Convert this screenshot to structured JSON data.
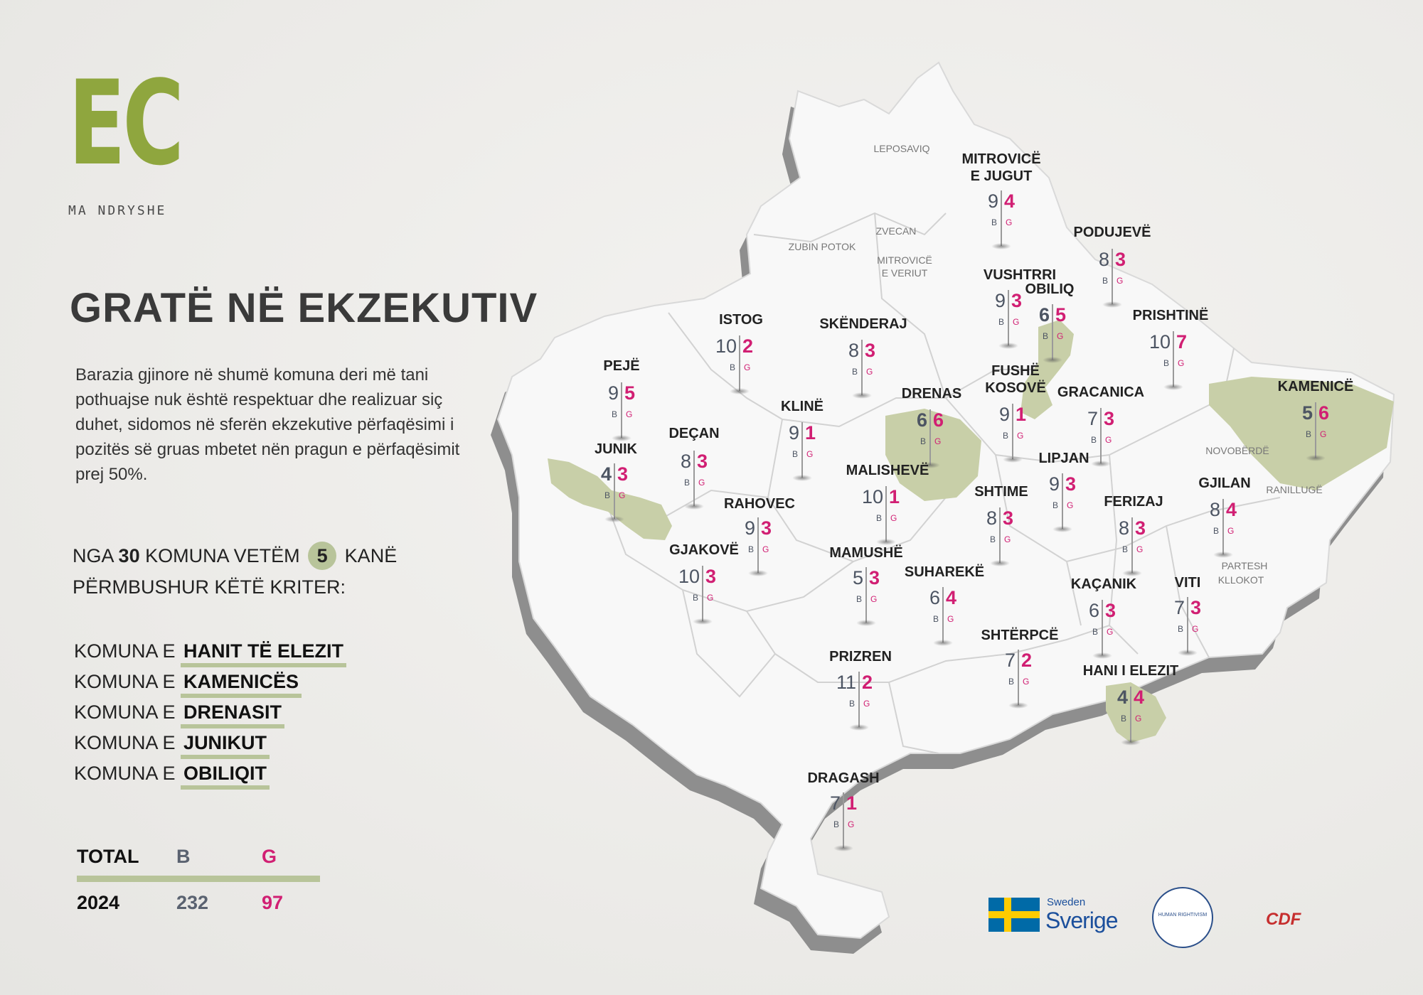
{
  "logo": {
    "mark": "EC",
    "tagline": "MA NDRYSHE"
  },
  "title": "GRATË NË EKZEKUTIV",
  "intro": "Barazia gjinore në shumë komuna deri më tani pothuajse nuk është  respektuar dhe realizuar siç duhet, sidomos në sferën ekzekutive përfaqësimi i pozitës së gruas mbetet nën pragun e përfaqësimit prej 50%.",
  "summary": {
    "prefix": "NGA",
    "total": "30",
    "middle": "KOMUNA VETËM",
    "count": "5",
    "suffix": "KANË",
    "line2": "PËRMBUSHUR KËTË KRITER:"
  },
  "compliant_list": {
    "prefix": "KOMUNA E",
    "items": [
      "HANIT TË ELEZIT",
      "KAMENICËS",
      "DRENASIT",
      "JUNIKUT",
      "OBILIQIT"
    ]
  },
  "totals": {
    "header": {
      "label": "TOTAL",
      "b": "B",
      "g": "G"
    },
    "row": {
      "year": "2024",
      "b": "232",
      "g": "97"
    }
  },
  "colors": {
    "accent_green": "#8fa63e",
    "highlight": "#c8cfa8",
    "boys": "#4d5563",
    "girls": "#d11f73",
    "map_fill": "#f7f7f7",
    "map_shadow": "#8e8e8e"
  },
  "map": {
    "labels": {
      "b": "B",
      "g": "G"
    },
    "municipalities": [
      {
        "name": "MITROVICË E JUGUT",
        "b": "9",
        "g": "4",
        "highlight": false
      },
      {
        "name": "PODUJEVË",
        "b": "8",
        "g": "3",
        "highlight": false
      },
      {
        "name": "VUSHTRRI",
        "b": "9",
        "g": "3",
        "highlight": false
      },
      {
        "name": "OBILIQ",
        "b": "6",
        "g": "5",
        "highlight": true
      },
      {
        "name": "PRISHTINË",
        "b": "10",
        "g": "7",
        "highlight": false
      },
      {
        "name": "ISTOG",
        "b": "10",
        "g": "2",
        "highlight": false
      },
      {
        "name": "SKËNDERAJ",
        "b": "8",
        "g": "3",
        "highlight": false
      },
      {
        "name": "PEJË",
        "b": "9",
        "g": "5",
        "highlight": false
      },
      {
        "name": "DRENAS",
        "b": "6",
        "g": "6",
        "highlight": true
      },
      {
        "name": "FUSHË KOSOVË",
        "b": "9",
        "g": "1",
        "highlight": false
      },
      {
        "name": "GRACANICA",
        "b": "7",
        "g": "3",
        "highlight": false
      },
      {
        "name": "KAMENICË",
        "b": "5",
        "g": "6",
        "highlight": true
      },
      {
        "name": "KLINË",
        "b": "9",
        "g": "1",
        "highlight": false
      },
      {
        "name": "DEÇAN",
        "b": "8",
        "g": "3",
        "highlight": false
      },
      {
        "name": "JUNIK",
        "b": "4",
        "g": "3",
        "highlight": true
      },
      {
        "name": "LIPJAN",
        "b": "9",
        "g": "3",
        "highlight": false
      },
      {
        "name": "MALISHEVË",
        "b": "10",
        "g": "1",
        "highlight": false
      },
      {
        "name": "SHTIME",
        "b": "8",
        "g": "3",
        "highlight": false
      },
      {
        "name": "GJILAN",
        "b": "8",
        "g": "4",
        "highlight": false
      },
      {
        "name": "RAHOVEC",
        "b": "9",
        "g": "3",
        "highlight": false
      },
      {
        "name": "FERIZAJ",
        "b": "8",
        "g": "3",
        "highlight": false
      },
      {
        "name": "GJAKOVË",
        "b": "10",
        "g": "3",
        "highlight": false
      },
      {
        "name": "MAMUSHË",
        "b": "5",
        "g": "3",
        "highlight": false
      },
      {
        "name": "SUHAREKË",
        "b": "6",
        "g": "4",
        "highlight": false
      },
      {
        "name": "KAÇANIK",
        "b": "6",
        "g": "3",
        "highlight": false
      },
      {
        "name": "VITI",
        "b": "7",
        "g": "3",
        "highlight": false
      },
      {
        "name": "SHTËRPCË",
        "b": "7",
        "g": "2",
        "highlight": false
      },
      {
        "name": "PRIZREN",
        "b": "11",
        "g": "2",
        "highlight": false
      },
      {
        "name": "HANI I ELEZIT",
        "b": "4",
        "g": "4",
        "highlight": true
      },
      {
        "name": "DRAGASH",
        "b": "7",
        "g": "1",
        "highlight": false
      }
    ],
    "no_data": [
      "LEPOSAVIQ",
      "ZVECAN",
      "ZUBIN POTOK",
      "MITROVICË E VERIUT",
      "NOVOBËRDË",
      "RANILLUGË",
      "PARTESH",
      "KLLOKOT"
    ]
  },
  "sponsors": {
    "sweden_small": "Sweden",
    "sweden_big": "Sverige",
    "human_rightivism": "HUMAN RIGHTIVISM",
    "cdf": "CDF"
  }
}
